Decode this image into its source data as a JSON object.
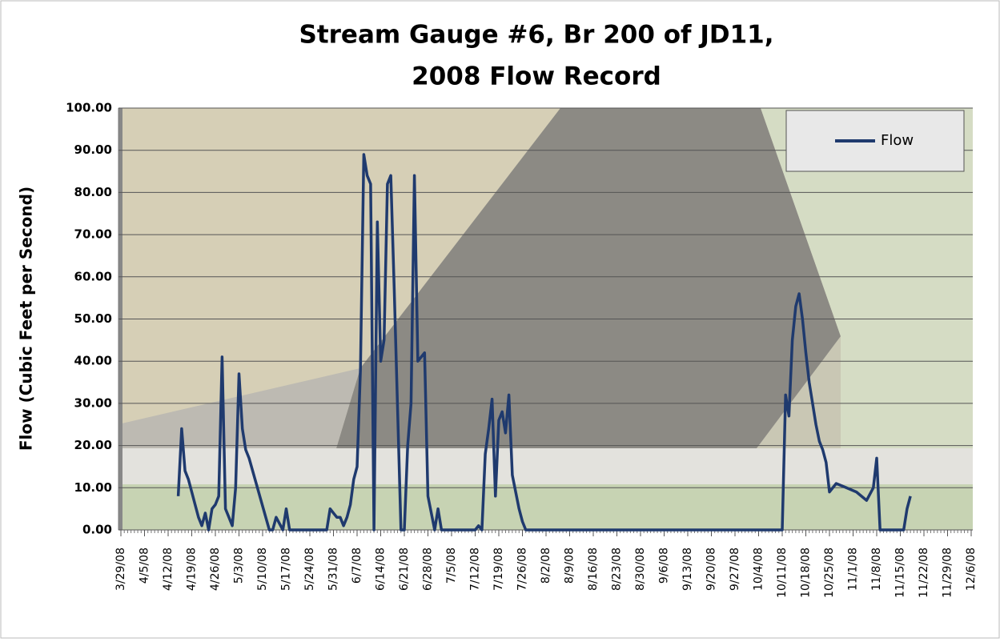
{
  "chart_data": {
    "type": "line",
    "title": [
      "Stream Gauge #6, Br 200 of JD11,",
      "2008 Flow Record"
    ],
    "y_label": "Flow (Cubic Feet per Second)",
    "xlim": [
      "3/29/08",
      "12/6/08"
    ],
    "xticks": [
      "3/29/08",
      "4/5/08",
      "4/12/08",
      "4/19/08",
      "4/26/08",
      "5/3/08",
      "5/10/08",
      "5/17/08",
      "5/24/08",
      "5/31/08",
      "6/7/08",
      "6/14/08",
      "6/21/08",
      "6/28/08",
      "7/5/08",
      "7/12/08",
      "7/19/08",
      "7/26/08",
      "8/2/08",
      "8/9/08",
      "8/16/08",
      "8/23/08",
      "8/30/08",
      "9/6/08",
      "9/13/08",
      "9/20/08",
      "9/27/08",
      "10/4/08",
      "10/11/08",
      "10/18/08",
      "10/25/08",
      "11/1/08",
      "11/8/08",
      "11/15/08",
      "11/22/08",
      "11/29/08",
      "12/6/08"
    ],
    "ylim": [
      0,
      100
    ],
    "yticks": [
      {
        "value": 0,
        "label": "0.00"
      },
      {
        "value": 10,
        "label": "10.00"
      },
      {
        "value": 20,
        "label": "20.00"
      },
      {
        "value": 30,
        "label": "30.00"
      },
      {
        "value": 40,
        "label": "40.00"
      },
      {
        "value": 50,
        "label": "50.00"
      },
      {
        "value": 60,
        "label": "60.00"
      },
      {
        "value": 70,
        "label": "70.00"
      },
      {
        "value": 80,
        "label": "80.00"
      },
      {
        "value": 90,
        "label": "90.00"
      },
      {
        "value": 100,
        "label": "100.00"
      }
    ],
    "grid": true,
    "legend": "top-right",
    "x": [
      "4/15/08",
      "4/16/08",
      "4/17/08",
      "4/18/08",
      "4/19/08",
      "4/20/08",
      "4/21/08",
      "4/22/08",
      "4/23/08",
      "4/24/08",
      "4/25/08",
      "4/26/08",
      "4/27/08",
      "4/28/08",
      "4/29/08",
      "4/30/08",
      "5/1/08",
      "5/2/08",
      "5/3/08",
      "5/4/08",
      "5/5/08",
      "5/6/08",
      "5/12/08",
      "5/13/08",
      "5/14/08",
      "5/16/08",
      "5/17/08",
      "5/18/08",
      "5/29/08",
      "5/30/08",
      "5/31/08",
      "6/1/08",
      "6/2/08",
      "6/3/08",
      "6/4/08",
      "6/5/08",
      "6/6/08",
      "6/7/08",
      "6/8/08",
      "6/9/08",
      "6/10/08",
      "6/11/08",
      "6/12/08",
      "6/13/08",
      "6/14/08",
      "6/15/08",
      "6/16/08",
      "6/17/08",
      "6/18/08",
      "6/20/08",
      "6/21/08",
      "6/22/08",
      "6/23/08",
      "6/24/08",
      "6/25/08",
      "6/26/08",
      "6/27/08",
      "6/28/08",
      "6/30/08",
      "7/1/08",
      "7/2/08",
      "7/12/08",
      "7/13/08",
      "7/14/08",
      "7/15/08",
      "7/16/08",
      "7/17/08",
      "7/18/08",
      "7/19/08",
      "7/20/08",
      "7/21/08",
      "7/22/08",
      "7/23/08",
      "7/24/08",
      "7/25/08",
      "7/26/08",
      "7/27/08",
      "7/28/08",
      "10/11/08",
      "10/12/08",
      "10/13/08",
      "10/14/08",
      "10/15/08",
      "10/16/08",
      "10/17/08",
      "10/18/08",
      "10/19/08",
      "10/20/08",
      "10/21/08",
      "10/22/08",
      "10/23/08",
      "10/24/08",
      "10/25/08",
      "10/27/08",
      "10/30/08",
      "11/2/08",
      "11/5/08",
      "11/7/08",
      "11/8/08",
      "11/9/08",
      "11/16/08",
      "11/17/08",
      "11/18/08"
    ],
    "series": [
      {
        "name": "Flow",
        "color": "#1f3a6e",
        "values": [
          8,
          24,
          14,
          12,
          9,
          6,
          3,
          1,
          4,
          0,
          5,
          6,
          8,
          41,
          5,
          3,
          1,
          10,
          37,
          24,
          19,
          17,
          0,
          0,
          3,
          0,
          5,
          0,
          0,
          5,
          4,
          3,
          3,
          1,
          3,
          6,
          12,
          15,
          38,
          89,
          84,
          82,
          0,
          73,
          40,
          45,
          82,
          84,
          57,
          0,
          0,
          20,
          30,
          84,
          40,
          41,
          42,
          8,
          0,
          5,
          0,
          0,
          1,
          0,
          18,
          24,
          31,
          8,
          26,
          28,
          23,
          32,
          13,
          9,
          5,
          2,
          0,
          0,
          0,
          32,
          27,
          45,
          53,
          56,
          50,
          42,
          35,
          30,
          25,
          21,
          19,
          16,
          9,
          11,
          10,
          9,
          7,
          10,
          17,
          0,
          0,
          5,
          8
        ]
      }
    ]
  }
}
